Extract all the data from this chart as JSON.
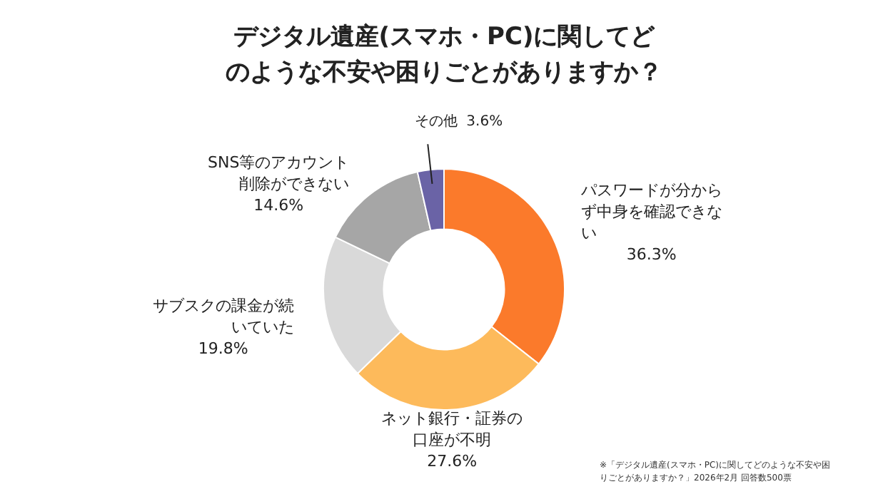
{
  "chart_data": {
    "type": "donut",
    "title": "デジタル遺産(スマホ・PC)に関してどのような不安や困りごとがありますか？",
    "categories": [
      "パスワードが分からず中身を確認できない",
      "ネット銀行・証券の口座が不明",
      "サブスクの課金が続いていた",
      "SNS等のアカウント削除ができない",
      "その他"
    ],
    "values": [
      36.3,
      27.6,
      19.8,
      14.6,
      3.6
    ],
    "value_labels": [
      "36.3%",
      "27.6%",
      "19.8%",
      "14.6%",
      "3.6%"
    ],
    "colors": [
      "#fb7a2b",
      "#fdba5b",
      "#d9d9d9",
      "#a6a6a6",
      "#6a63a6"
    ],
    "legend": false,
    "annotations": [
      "※「デジタル遺産(スマホ・PC)に関してどのような不安や困りごとがありますか？」2026年2月 回答数500票"
    ]
  }
}
